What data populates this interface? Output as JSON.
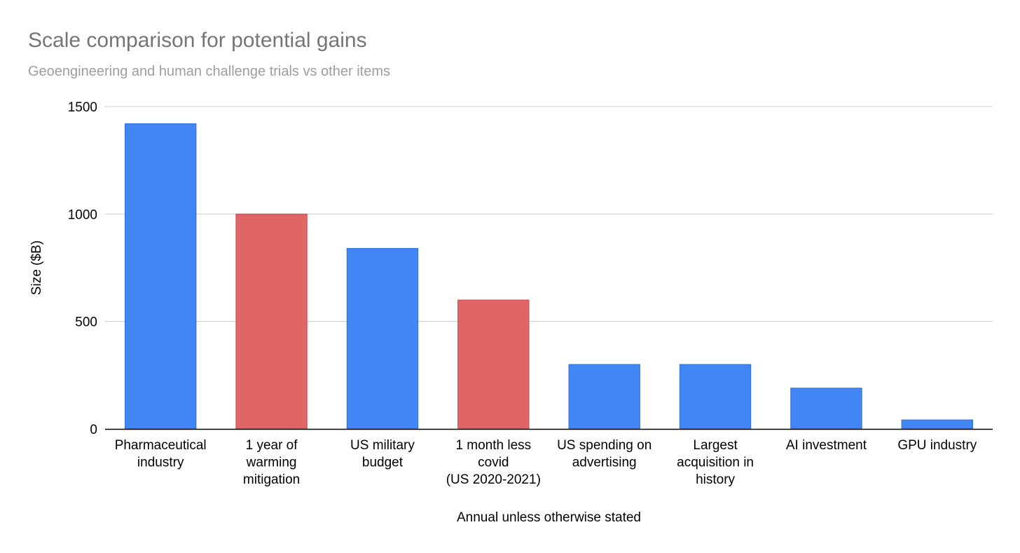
{
  "chart_data": {
    "type": "bar",
    "title": "Scale comparison for potential gains",
    "subtitle": "Geoengineering and human challenge trials vs other items",
    "xlabel": "Annual unless otherwise stated",
    "ylabel": "Size ($B)",
    "ylim": [
      0,
      1500
    ],
    "yticks": [
      "0",
      "500",
      "1000",
      "1500"
    ],
    "grid": true,
    "legend": "none",
    "categories": [
      [
        "Pharmaceutical",
        "industry"
      ],
      [
        "1 year of",
        "warming",
        "mitigation"
      ],
      [
        "US military",
        "budget"
      ],
      [
        "1 month less",
        "covid",
        "(US 2020-2021)"
      ],
      [
        "US spending on",
        "advertising"
      ],
      [
        "Largest",
        "acquisition in",
        "history"
      ],
      [
        "AI investment"
      ],
      [
        "GPU industry"
      ]
    ],
    "values": [
      1420,
      1000,
      840,
      600,
      300,
      300,
      190,
      42
    ],
    "bar_colors": [
      "#4285f4",
      "#e06666",
      "#4285f4",
      "#e06666",
      "#4285f4",
      "#4285f4",
      "#4285f4",
      "#4285f4"
    ],
    "colors": {
      "title": "#757575",
      "subtitle": "#9e9e9e",
      "text": "#000000",
      "grid": "#cccccc",
      "axis": "#000000",
      "blue": "#4285f4",
      "red": "#e06666"
    }
  }
}
